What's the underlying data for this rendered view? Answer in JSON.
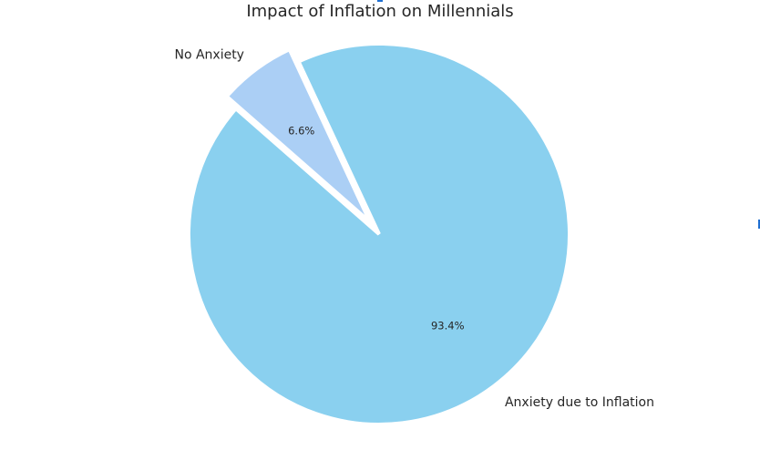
{
  "chart_data": {
    "type": "pie",
    "title": "Impact of Inflation on Millennials",
    "labels": [
      "No Anxiety",
      "Anxiety due to Inflation"
    ],
    "values": [
      6.6,
      93.4
    ],
    "autopct_labels": [
      "6.6%",
      "93.4%"
    ],
    "colors": [
      "#abcff5",
      "#8ad0ef"
    ],
    "explode": [
      0.08,
      0
    ],
    "startangle": 115,
    "wedge_edge_color": "#ffffff",
    "legend": false
  },
  "title": "Impact of Inflation on Millennials"
}
